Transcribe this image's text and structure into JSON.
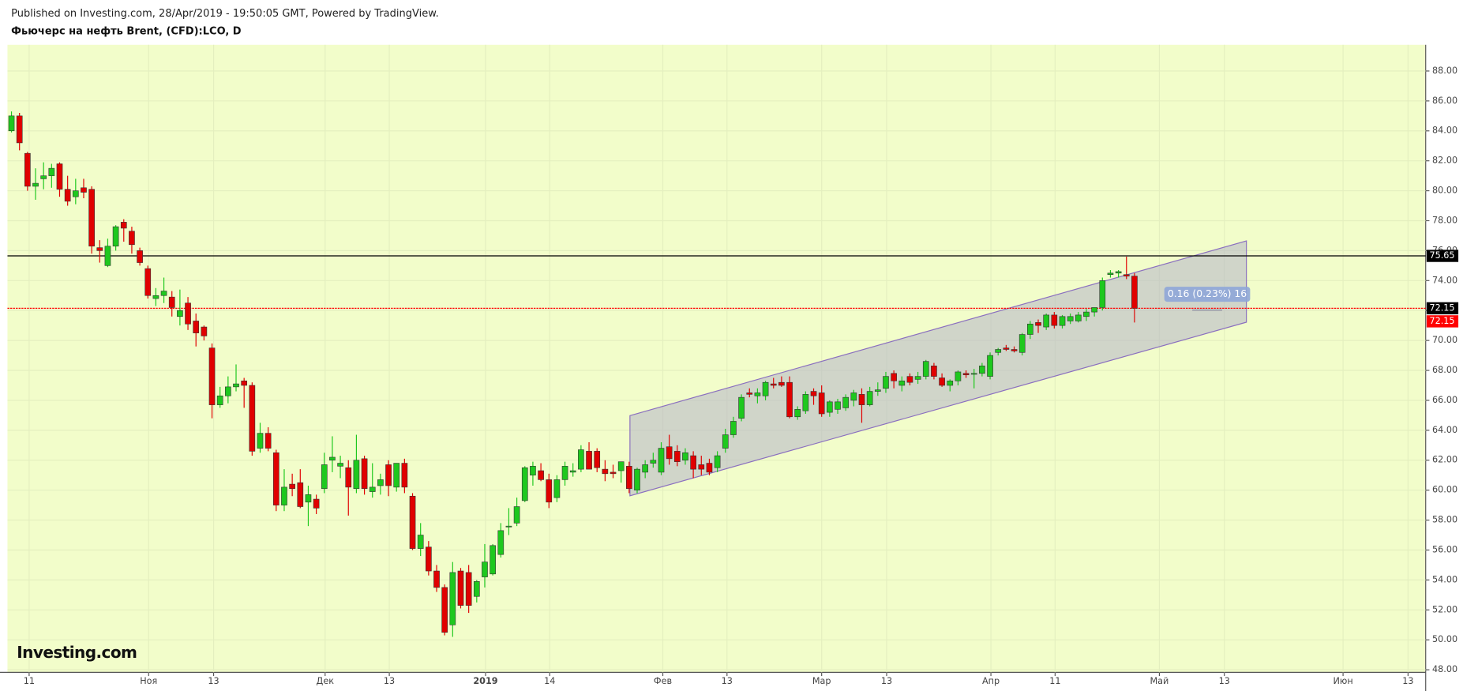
{
  "header": {
    "published": "Published on Investing.com, 28/Apr/2019 - 19:50:05 GMT, Powered by TradingView.",
    "logo": "Investing.com"
  },
  "chart_data": {
    "type": "candlestick",
    "title": "Фьючерс на нефть Brent, (CFD):LCO, D",
    "up_color": "#1ec81e",
    "down_color": "#e00000",
    "background": "#f2fdca",
    "grid": true,
    "xlim": [
      -0.5,
      176.3
    ],
    "ylim": [
      47.83,
      89.75
    ],
    "yticks": [
      {
        "value": 48,
        "label": "48.00"
      },
      {
        "value": 50,
        "label": "50.00"
      },
      {
        "value": 52,
        "label": "52.00"
      },
      {
        "value": 54,
        "label": "54.00"
      },
      {
        "value": 56,
        "label": "56.00"
      },
      {
        "value": 58,
        "label": "58.00"
      },
      {
        "value": 60,
        "label": "60.00"
      },
      {
        "value": 62,
        "label": "62.00"
      },
      {
        "value": 64,
        "label": "64.00"
      },
      {
        "value": 66,
        "label": "66.00"
      },
      {
        "value": 68,
        "label": "68.00"
      },
      {
        "value": 70,
        "label": "70.00"
      },
      {
        "value": 72,
        "label": "72.00"
      },
      {
        "value": 74,
        "label": "74.00"
      },
      {
        "value": 76,
        "label": "76.00"
      },
      {
        "value": 78,
        "label": "78.00"
      },
      {
        "value": 80,
        "label": "80.00"
      },
      {
        "value": 82,
        "label": "82.00"
      },
      {
        "value": 84,
        "label": "84.00"
      },
      {
        "value": 86,
        "label": "86.00"
      },
      {
        "value": 88,
        "label": "88.00"
      }
    ],
    "xticks": [
      {
        "value": 2.2,
        "label": "11"
      },
      {
        "value": 17.1,
        "label": "Ноя"
      },
      {
        "value": 25.2,
        "label": "13"
      },
      {
        "value": 39.1,
        "label": "Дек"
      },
      {
        "value": 47.1,
        "label": "13"
      },
      {
        "value": 59.1,
        "label": "2019"
      },
      {
        "value": 67.1,
        "label": "14"
      },
      {
        "value": 81.2,
        "label": "Фев"
      },
      {
        "value": 89.2,
        "label": "13"
      },
      {
        "value": 101,
        "label": "Мар"
      },
      {
        "value": 109.1,
        "label": "13"
      },
      {
        "value": 122.1,
        "label": "Апр"
      },
      {
        "value": 130.1,
        "label": "11"
      },
      {
        "value": 143.1,
        "label": "Май"
      },
      {
        "value": 151.2,
        "label": "13"
      },
      {
        "value": 166,
        "label": "Июн"
      },
      {
        "value": 174.1,
        "label": "13"
      }
    ],
    "price_lines": [
      {
        "value": 75.65,
        "color": "#000000"
      },
      {
        "value": 72.15,
        "color": "#ff0000"
      }
    ],
    "channel": {
      "points": [
        [
          77.1,
          64.98
        ],
        [
          153.95,
          76.65
        ],
        [
          153.95,
          71.22
        ],
        [
          77.1,
          59.62
        ]
      ]
    },
    "measure_label": "0.16 (0.23%) 16",
    "values": [
      [
        84.0,
        85.3,
        83.9,
        85.0
      ],
      [
        85.0,
        85.2,
        82.7,
        83.2
      ],
      [
        82.5,
        82.6,
        80.0,
        80.3
      ],
      [
        80.3,
        81.5,
        79.4,
        80.5
      ],
      [
        80.8,
        81.9,
        80.1,
        81.0
      ],
      [
        81.0,
        81.8,
        80.2,
        81.5
      ],
      [
        81.8,
        81.9,
        79.6,
        80.1
      ],
      [
        80.1,
        81.0,
        79.0,
        79.3
      ],
      [
        79.6,
        80.8,
        79.1,
        80.0
      ],
      [
        80.2,
        80.8,
        79.5,
        79.9
      ],
      [
        80.1,
        80.3,
        75.8,
        76.3
      ],
      [
        76.2,
        76.7,
        75.2,
        76.0
      ],
      [
        75.0,
        76.8,
        74.9,
        76.3
      ],
      [
        76.3,
        77.7,
        76.0,
        77.6
      ],
      [
        77.9,
        78.1,
        76.6,
        77.5
      ],
      [
        77.3,
        77.6,
        75.8,
        76.4
      ],
      [
        76.0,
        76.2,
        75.0,
        75.2
      ],
      [
        74.8,
        75.0,
        72.8,
        73.0
      ],
      [
        72.8,
        73.5,
        72.3,
        73.0
      ],
      [
        73.0,
        74.2,
        72.5,
        73.3
      ],
      [
        72.9,
        73.3,
        71.6,
        72.2
      ],
      [
        71.6,
        73.4,
        71.0,
        72.0
      ],
      [
        72.5,
        72.9,
        70.7,
        71.1
      ],
      [
        71.3,
        71.8,
        69.6,
        70.5
      ],
      [
        70.9,
        71.0,
        70.0,
        70.3
      ],
      [
        69.5,
        69.8,
        64.8,
        65.7
      ],
      [
        65.7,
        66.9,
        65.5,
        66.3
      ],
      [
        66.3,
        67.6,
        65.8,
        66.9
      ],
      [
        66.9,
        68.4,
        66.6,
        67.1
      ],
      [
        67.3,
        67.5,
        65.5,
        67.0
      ],
      [
        67.0,
        67.2,
        62.3,
        62.6
      ],
      [
        62.8,
        64.5,
        62.5,
        63.8
      ],
      [
        63.8,
        64.2,
        62.6,
        62.8
      ],
      [
        62.5,
        62.7,
        58.6,
        59.0
      ],
      [
        59.0,
        61.4,
        58.6,
        60.2
      ],
      [
        60.4,
        61.1,
        59.6,
        60.1
      ],
      [
        60.5,
        61.4,
        58.8,
        58.9
      ],
      [
        59.2,
        60.3,
        57.6,
        59.7
      ],
      [
        59.4,
        59.7,
        58.4,
        58.8
      ],
      [
        60.1,
        62.5,
        59.8,
        61.7
      ],
      [
        62.0,
        63.6,
        61.2,
        62.2
      ],
      [
        61.6,
        62.3,
        60.8,
        61.8
      ],
      [
        61.5,
        62.0,
        58.3,
        60.2
      ],
      [
        60.1,
        63.7,
        59.8,
        62.0
      ],
      [
        62.1,
        62.3,
        59.7,
        60.1
      ],
      [
        59.9,
        61.8,
        59.5,
        60.2
      ],
      [
        60.3,
        61.1,
        59.7,
        60.7
      ],
      [
        61.7,
        62.0,
        59.6,
        60.3
      ],
      [
        60.2,
        61.8,
        59.9,
        61.8
      ],
      [
        61.8,
        62.1,
        59.8,
        60.2
      ],
      [
        59.6,
        59.8,
        56.0,
        56.1
      ],
      [
        56.1,
        57.8,
        55.6,
        57.0
      ],
      [
        56.2,
        56.6,
        54.3,
        54.6
      ],
      [
        54.6,
        55.0,
        53.2,
        53.5
      ],
      [
        53.5,
        53.7,
        50.3,
        50.5
      ],
      [
        51.0,
        55.2,
        50.2,
        54.5
      ],
      [
        54.6,
        54.8,
        52.1,
        52.3
      ],
      [
        54.5,
        55.0,
        51.8,
        52.3
      ],
      [
        52.9,
        54.0,
        52.5,
        53.9
      ],
      [
        54.2,
        56.4,
        53.5,
        55.2
      ],
      [
        54.4,
        56.4,
        54.3,
        56.3
      ],
      [
        55.7,
        57.8,
        55.5,
        57.3
      ],
      [
        57.6,
        58.8,
        57.0,
        57.6
      ],
      [
        57.8,
        59.5,
        57.6,
        58.9
      ],
      [
        59.3,
        61.6,
        59.2,
        61.5
      ],
      [
        61.0,
        61.9,
        60.3,
        61.6
      ],
      [
        61.3,
        61.8,
        60.6,
        60.7
      ],
      [
        60.7,
        61.1,
        58.8,
        59.2
      ],
      [
        59.5,
        61.0,
        59.2,
        60.7
      ],
      [
        60.7,
        61.9,
        60.3,
        61.6
      ],
      [
        61.2,
        61.8,
        60.9,
        61.3
      ],
      [
        61.4,
        63.0,
        61.2,
        62.7
      ],
      [
        62.6,
        63.2,
        61.4,
        61.4
      ],
      [
        62.6,
        62.8,
        61.2,
        61.5
      ],
      [
        61.4,
        62.0,
        60.6,
        61.1
      ],
      [
        61.2,
        61.7,
        60.8,
        61.1
      ],
      [
        61.3,
        61.9,
        60.5,
        61.9
      ],
      [
        61.6,
        61.9,
        59.8,
        60.1
      ],
      [
        60.0,
        61.5,
        59.8,
        61.4
      ],
      [
        61.2,
        62.0,
        60.8,
        61.7
      ],
      [
        61.8,
        62.5,
        61.5,
        62.0
      ],
      [
        61.2,
        63.2,
        61.0,
        62.8
      ],
      [
        62.9,
        63.7,
        61.7,
        62.1
      ],
      [
        62.6,
        63.0,
        61.6,
        61.9
      ],
      [
        62.0,
        62.8,
        61.7,
        62.5
      ],
      [
        62.3,
        62.6,
        60.8,
        61.4
      ],
      [
        61.7,
        62.3,
        61.0,
        61.4
      ],
      [
        61.8,
        62.1,
        61.0,
        61.2
      ],
      [
        61.5,
        62.6,
        61.2,
        62.3
      ],
      [
        62.8,
        64.1,
        62.5,
        63.7
      ],
      [
        63.7,
        64.9,
        63.5,
        64.6
      ],
      [
        64.8,
        66.4,
        64.6,
        66.2
      ],
      [
        66.5,
        66.8,
        66.2,
        66.4
      ],
      [
        66.3,
        66.8,
        65.8,
        66.5
      ],
      [
        66.3,
        67.3,
        66.0,
        67.2
      ],
      [
        67.1,
        67.5,
        66.8,
        67.0
      ],
      [
        67.2,
        67.6,
        66.9,
        67.0
      ],
      [
        67.2,
        67.6,
        64.8,
        64.9
      ],
      [
        64.9,
        65.6,
        64.7,
        65.4
      ],
      [
        65.3,
        66.6,
        65.1,
        66.4
      ],
      [
        66.6,
        66.8,
        65.7,
        66.3
      ],
      [
        66.5,
        67.0,
        64.9,
        65.1
      ],
      [
        65.2,
        66.0,
        64.9,
        65.9
      ],
      [
        65.4,
        66.1,
        65.1,
        65.9
      ],
      [
        65.5,
        66.4,
        65.3,
        66.2
      ],
      [
        66.0,
        66.7,
        65.6,
        66.5
      ],
      [
        66.4,
        66.8,
        64.5,
        65.7
      ],
      [
        65.7,
        66.9,
        65.6,
        66.6
      ],
      [
        66.6,
        67.2,
        66.3,
        66.7
      ],
      [
        66.8,
        67.9,
        66.5,
        67.6
      ],
      [
        67.8,
        68.0,
        66.8,
        67.3
      ],
      [
        67.0,
        67.6,
        66.6,
        67.3
      ],
      [
        67.6,
        67.8,
        67.0,
        67.2
      ],
      [
        67.4,
        67.9,
        67.1,
        67.6
      ],
      [
        67.6,
        68.7,
        67.4,
        68.6
      ],
      [
        68.3,
        68.5,
        67.4,
        67.6
      ],
      [
        67.5,
        67.8,
        66.9,
        67.0
      ],
      [
        67.0,
        67.4,
        66.6,
        67.3
      ],
      [
        67.3,
        68.0,
        67.0,
        67.9
      ],
      [
        67.8,
        68.0,
        67.5,
        67.7
      ],
      [
        67.8,
        68.1,
        66.8,
        67.8
      ],
      [
        67.8,
        68.5,
        67.6,
        68.3
      ],
      [
        67.6,
        69.2,
        67.4,
        69.0
      ],
      [
        69.2,
        69.5,
        69.0,
        69.4
      ],
      [
        69.5,
        69.7,
        69.3,
        69.4
      ],
      [
        69.4,
        69.6,
        69.2,
        69.3
      ],
      [
        69.2,
        70.5,
        69.0,
        70.4
      ],
      [
        70.4,
        71.3,
        70.1,
        71.1
      ],
      [
        71.2,
        71.4,
        70.5,
        71.0
      ],
      [
        70.9,
        71.8,
        70.7,
        71.7
      ],
      [
        71.7,
        71.9,
        70.8,
        71.0
      ],
      [
        71.0,
        71.7,
        70.8,
        71.6
      ],
      [
        71.3,
        71.8,
        71.1,
        71.6
      ],
      [
        71.3,
        71.9,
        71.2,
        71.7
      ],
      [
        71.6,
        72.1,
        71.3,
        71.9
      ],
      [
        71.9,
        72.2,
        71.6,
        72.2
      ],
      [
        72.2,
        74.2,
        72.0,
        74.0
      ],
      [
        74.4,
        74.7,
        74.2,
        74.5
      ],
      [
        74.5,
        74.7,
        74.2,
        74.6
      ],
      [
        74.4,
        75.6,
        74.1,
        74.3
      ],
      [
        74.3,
        74.5,
        71.2,
        72.15
      ]
    ]
  }
}
